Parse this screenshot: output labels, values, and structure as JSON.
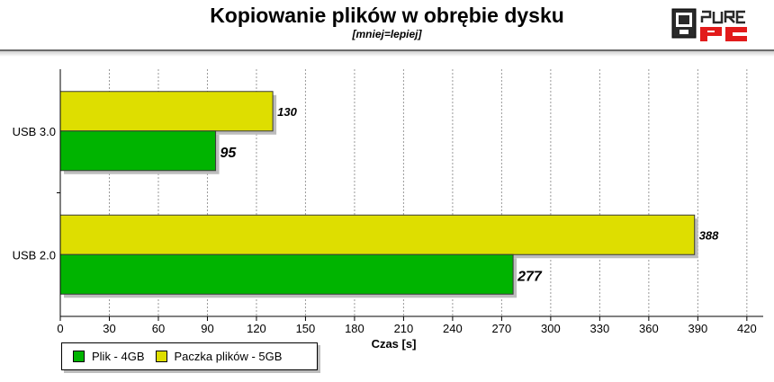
{
  "header": {
    "title": "Kopiowanie plików w obrębie dysku",
    "subtitle": "[mniej=lepiej]",
    "logo_text": "PURE PC"
  },
  "chart_data": {
    "type": "bar",
    "orientation": "horizontal",
    "categories": [
      "USB 3.0",
      "USB 2.0"
    ],
    "series": [
      {
        "name": "Paczka plików - 5GB",
        "values": [
          130,
          388
        ],
        "color": "#dede00"
      },
      {
        "name": "Plik - 4GB",
        "values": [
          95,
          277
        ],
        "color": "#00b400"
      }
    ],
    "xlabel": "Czas [s]",
    "ylabel": "",
    "xlim": [
      0,
      430
    ],
    "xticks": [
      0,
      30,
      60,
      90,
      120,
      150,
      180,
      210,
      240,
      270,
      300,
      330,
      360,
      390,
      420
    ],
    "grid": true,
    "legend_position": "bottom-left"
  },
  "legend": {
    "items": [
      {
        "label": "Plik - 4GB",
        "color": "#00b400"
      },
      {
        "label": "Paczka plików - 5GB",
        "color": "#dede00"
      }
    ]
  }
}
